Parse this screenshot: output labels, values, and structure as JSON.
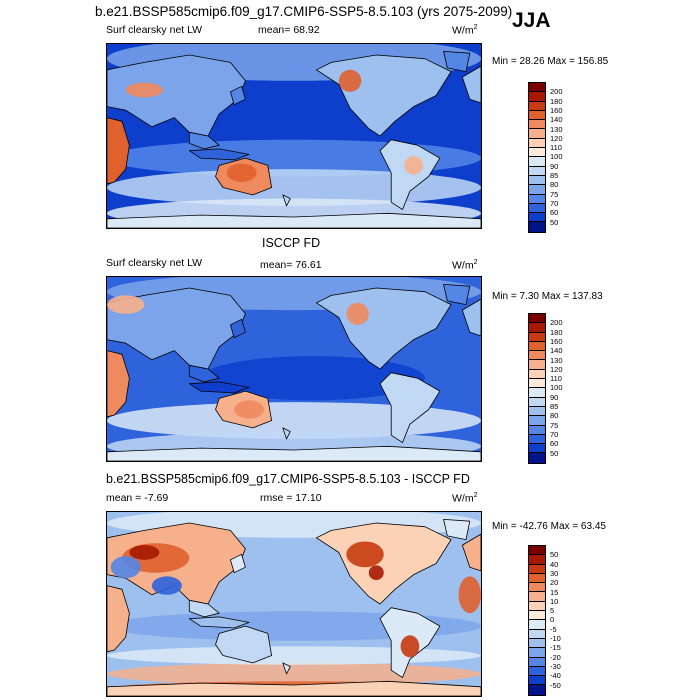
{
  "header": {
    "main_title": "b.e21.BSSP585cmip6.f09_g17.CMIP6-SSP5-8.5.103 (yrs 2075-2099)",
    "season": "JJA"
  },
  "panels": [
    {
      "label": "Surf clearsky net LW",
      "stat": "mean=  68.92",
      "units": "W/m",
      "units_sup": "2",
      "minmax": "Min =  28.26 Max =  156.85",
      "colorbar": {
        "levels": [
          "200",
          "180",
          "160",
          "140",
          "130",
          "120",
          "110",
          "100",
          "90",
          "85",
          "80",
          "75",
          "70",
          "60",
          "50"
        ],
        "colors": [
          "#7a0000",
          "#a61800",
          "#c83a10",
          "#e0602e",
          "#ef8a5e",
          "#f6b08c",
          "#fbd2b6",
          "#fcebd9",
          "#dceaf8",
          "#c0d8f4",
          "#9ec0ef",
          "#7ba4ea",
          "#5486e6",
          "#2f63dc",
          "#0d3fcc",
          "#00148a"
        ]
      }
    },
    {
      "heading": "ISCCP FD",
      "label": "Surf clearsky net LW",
      "stat": "mean=  76.61",
      "units": "W/m",
      "units_sup": "2",
      "minmax": "Min =   7.30 Max =  137.83",
      "colorbar": {
        "levels": [
          "200",
          "180",
          "160",
          "140",
          "130",
          "120",
          "110",
          "100",
          "90",
          "85",
          "80",
          "75",
          "70",
          "60",
          "50"
        ],
        "colors": [
          "#7a0000",
          "#a61800",
          "#c83a10",
          "#e0602e",
          "#ef8a5e",
          "#f6b08c",
          "#fbd2b6",
          "#fcebd9",
          "#dceaf8",
          "#c0d8f4",
          "#9ec0ef",
          "#7ba4ea",
          "#5486e6",
          "#2f63dc",
          "#0d3fcc",
          "#00148a"
        ]
      }
    },
    {
      "heading": "b.e21.BSSP585cmip6.f09_g17.CMIP6-SSP5-8.5.103 - ISCCP FD",
      "stat": "mean =  -7.69",
      "rmse": "rmse =  17.10",
      "units": "W/m",
      "units_sup": "2",
      "minmax": "Min = -42.76 Max =  63.45",
      "colorbar": {
        "levels": [
          "50",
          "40",
          "30",
          "20",
          "15",
          "10",
          "5",
          "0",
          "-5",
          "-10",
          "-15",
          "-20",
          "-30",
          "-40",
          "-50"
        ],
        "colors": [
          "#7a0000",
          "#a61800",
          "#c83a10",
          "#e0602e",
          "#ef8a5e",
          "#f6b08c",
          "#fbd2b6",
          "#fcebd9",
          "#dceaf8",
          "#c0d8f4",
          "#9ec0ef",
          "#7ba4ea",
          "#5486e6",
          "#2f63dc",
          "#0d3fcc",
          "#00148a"
        ]
      }
    }
  ],
  "colors": {
    "deep_blue": "#00148a",
    "blue": "#2f63dc",
    "light_blue": "#c0d8f4",
    "white": "#fcebd9",
    "orange": "#ef8a5e",
    "red": "#a61800",
    "coast": "#000000"
  }
}
